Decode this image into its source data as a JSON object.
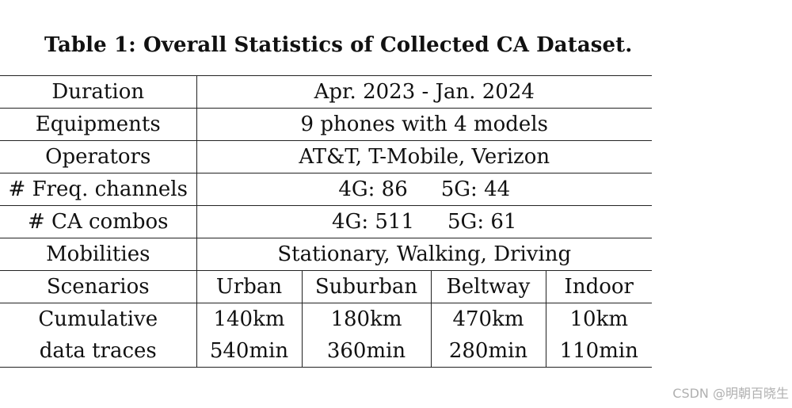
{
  "caption": "Table 1: Overall Statistics of Collected CA Dataset.",
  "rows": {
    "duration": {
      "label": "Duration",
      "value": "Apr. 2023 - Jan. 2024"
    },
    "equipments": {
      "label": "Equipments",
      "value": "9 phones with 4 models"
    },
    "operators": {
      "label": "Operators",
      "value": "AT&T, T-Mobile, Verizon"
    },
    "freq_channels": {
      "label": "# Freq. channels",
      "value_4g": "4G: 86",
      "value_5g": "5G: 44"
    },
    "ca_combos": {
      "label": "# CA combos",
      "value_4g": "4G: 511",
      "value_5g": "5G: 61"
    },
    "mobilities": {
      "label": "Mobilities",
      "value": "Stationary, Walking, Driving"
    },
    "scenarios": {
      "label": "Scenarios",
      "values": [
        "Urban",
        "Suburban",
        "Beltway",
        "Indoor"
      ]
    },
    "cumulative": {
      "label_line1": "Cumulative",
      "label_line2": "data traces",
      "distance": [
        "140km",
        "180km",
        "470km",
        "10km"
      ],
      "time": [
        "540min",
        "360min",
        "280min",
        "110min"
      ]
    }
  },
  "watermark": "CSDN @明朝百晓生"
}
